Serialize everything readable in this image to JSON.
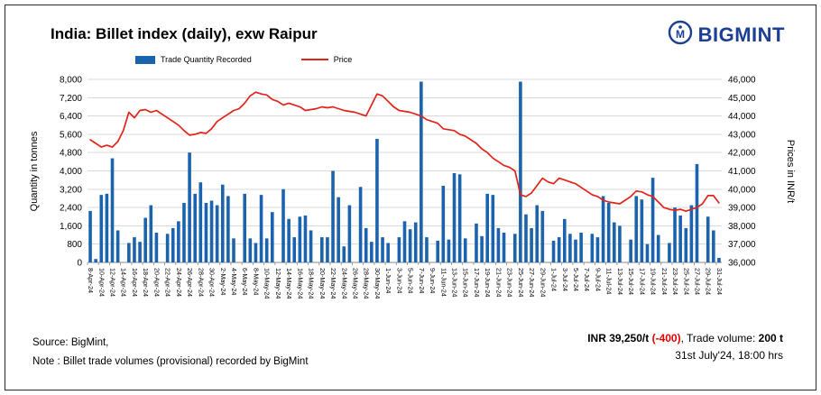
{
  "title": "India: Billet index (daily), exw Raipur",
  "logo": {
    "text": "BIGMINT"
  },
  "legend": {
    "quantity": "Trade Quantity Recorded",
    "price": "Price"
  },
  "footer": {
    "source": "Source: BigMint,",
    "note": "Note : Billet trade volumes (provisional) recorded by BigMint",
    "price_label": "INR 39,250/t ",
    "price_change": "(-400)",
    "volume_sep": ", Trade volume: ",
    "volume_value": "200 t",
    "timestamp": "31st July'24, 18:00 hrs"
  },
  "colors": {
    "bar": "#1b63ac",
    "line": "#e2231a",
    "logo": "#1c3f94",
    "grid": "#d9d9d9",
    "axis": "#898989"
  },
  "chart_data": {
    "type": "bar+line combo",
    "label_every": 2,
    "y_left": {
      "title": "Quantity in tonnes",
      "min": 0,
      "max": 8000,
      "step": 800
    },
    "y_right": {
      "title": "Prices in INR/t",
      "min": 36000,
      "max": 46000,
      "step": 1000
    },
    "x": [
      "8-Apr-24",
      "9-Apr-24",
      "10-Apr-24",
      "11-Apr-24",
      "12-Apr-24",
      "13-Apr-24",
      "14-Apr-24",
      "15-Apr-24",
      "16-Apr-24",
      "17-Apr-24",
      "18-Apr-24",
      "19-Apr-24",
      "20-Apr-24",
      "21-Apr-24",
      "22-Apr-24",
      "23-Apr-24",
      "24-Apr-24",
      "25-Apr-24",
      "26-Apr-24",
      "27-Apr-24",
      "28-Apr-24",
      "29-Apr-24",
      "30-Apr-24",
      "1-May-24",
      "2-May-24",
      "3-May-24",
      "4-May-24",
      "5-May-24",
      "6-May-24",
      "7-May-24",
      "8-May-24",
      "9-May-24",
      "10-May-24",
      "11-May-24",
      "12-May-24",
      "13-May-24",
      "14-May-24",
      "15-May-24",
      "16-May-24",
      "17-May-24",
      "18-May-24",
      "19-May-24",
      "20-May-24",
      "21-May-24",
      "22-May-24",
      "23-May-24",
      "24-May-24",
      "25-May-24",
      "26-May-24",
      "27-May-24",
      "28-May-24",
      "29-May-24",
      "30-May-24",
      "31-May-24",
      "1-Jun-24",
      "2-Jun-24",
      "3-Jun-24",
      "4-Jun-24",
      "5-Jun-24",
      "6-Jun-24",
      "7-Jun-24",
      "8-Jun-24",
      "9-Jun-24",
      "10-Jun-24",
      "11-Jun-24",
      "12-Jun-24",
      "13-Jun-24",
      "14-Jun-24",
      "15-Jun-24",
      "16-Jun-24",
      "17-Jun-24",
      "18-Jun-24",
      "19-Jun-24",
      "20-Jun-24",
      "21-Jun-24",
      "22-Jun-24",
      "23-Jun-24",
      "24-Jun-24",
      "25-Jun-24",
      "26-Jun-24",
      "27-Jun-24",
      "28-Jun-24",
      "29-Jun-24",
      "30-Jun-24",
      "1-Jul-24",
      "2-Jul-24",
      "3-Jul-24",
      "4-Jul-24",
      "5-Jul-24",
      "6-Jul-24",
      "7-Jul-24",
      "8-Jul-24",
      "9-Jul-24",
      "10-Jul-24",
      "11-Jul-24",
      "12-Jul-24",
      "13-Jul-24",
      "14-Jul-24",
      "15-Jul-24",
      "16-Jul-24",
      "17-Jul-24",
      "18-Jul-24",
      "19-Jul-24",
      "20-Jul-24",
      "21-Jul-24",
      "22-Jul-24",
      "23-Jul-24",
      "24-Jul-24",
      "25-Jul-24",
      "26-Jul-24",
      "27-Jul-24",
      "28-Jul-24",
      "29-Jul-24",
      "30-Jul-24",
      "31-Jul-24"
    ],
    "series": [
      {
        "name": "Trade Quantity Recorded",
        "type": "bar",
        "axis": "left",
        "color": "#1b63ac",
        "values": [
          2250,
          150,
          2950,
          3000,
          4550,
          1400,
          0,
          850,
          1100,
          900,
          1950,
          2500,
          1300,
          0,
          1250,
          1500,
          1800,
          2600,
          4800,
          3000,
          3500,
          2600,
          2700,
          2500,
          3400,
          2900,
          1050,
          0,
          3000,
          1050,
          850,
          2950,
          1050,
          2200,
          0,
          3200,
          1900,
          1100,
          2000,
          2050,
          1400,
          0,
          1100,
          1100,
          4000,
          2850,
          700,
          2500,
          0,
          3300,
          1500,
          900,
          5400,
          1100,
          850,
          0,
          1100,
          1800,
          1450,
          1750,
          7900,
          1100,
          0,
          950,
          3350,
          1000,
          3900,
          3850,
          1050,
          0,
          1700,
          1150,
          3000,
          2950,
          1500,
          1300,
          0,
          1250,
          7900,
          2100,
          1500,
          2500,
          2250,
          0,
          950,
          1100,
          1900,
          1250,
          1000,
          1300,
          0,
          1250,
          1100,
          2900,
          2600,
          1750,
          1600,
          0,
          1000,
          2900,
          2750,
          800,
          3700,
          1200,
          0,
          850,
          2400,
          2050,
          1500,
          2500,
          4300,
          0,
          2000,
          1400,
          200
        ]
      },
      {
        "name": "Price",
        "type": "line",
        "axis": "right",
        "color": "#e2231a",
        "values": [
          42700,
          42500,
          42300,
          42400,
          42300,
          42600,
          43200,
          44200,
          43900,
          44300,
          44350,
          44200,
          44300,
          44100,
          43900,
          43700,
          43500,
          43200,
          42950,
          43000,
          43100,
          43050,
          43300,
          43700,
          43900,
          44100,
          44300,
          44400,
          44700,
          45100,
          45300,
          45200,
          45150,
          44900,
          44800,
          44600,
          44700,
          44600,
          44500,
          44300,
          44350,
          44400,
          44500,
          44450,
          44500,
          44400,
          44300,
          44250,
          44200,
          44100,
          44000,
          44600,
          45200,
          45100,
          44800,
          44500,
          44300,
          44250,
          44200,
          44100,
          44000,
          43800,
          43700,
          43600,
          43300,
          43250,
          43200,
          43000,
          42900,
          42700,
          42500,
          42200,
          42000,
          41700,
          41500,
          41300,
          41200,
          41000,
          39700,
          39600,
          39800,
          40200,
          40600,
          40400,
          40300,
          40600,
          40500,
          40400,
          40300,
          40100,
          39900,
          39700,
          39600,
          39400,
          39300,
          39250,
          39200,
          39400,
          39600,
          39900,
          39850,
          39700,
          39600,
          39300,
          39000,
          38900,
          38850,
          38900,
          38800,
          38900,
          39000,
          39200,
          39650,
          39650,
          39250
        ]
      }
    ]
  }
}
